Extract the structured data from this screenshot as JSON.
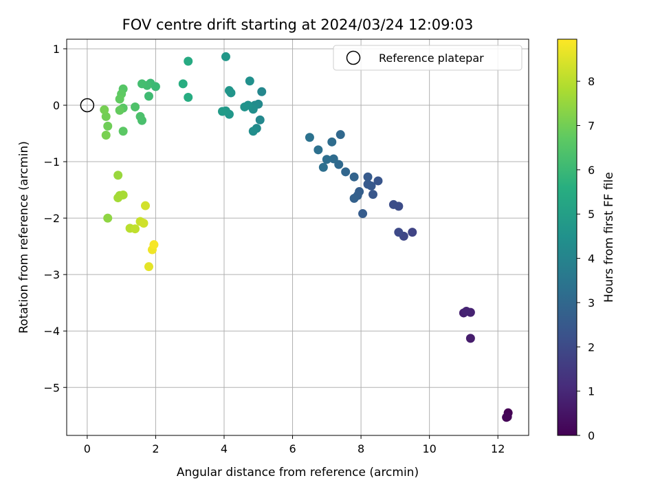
{
  "chart_data": {
    "type": "scatter",
    "title": "FOV centre drift starting at 2024/03/24 12:09:03",
    "xlabel": "Angular distance from reference (arcmin)",
    "ylabel": "Rotation from reference (arcmin)",
    "xlim": [
      -0.6,
      12.9
    ],
    "ylim": [
      -5.85,
      1.17
    ],
    "xticks": [
      0,
      2,
      4,
      6,
      8,
      10,
      12
    ],
    "xtick_labels": [
      "0",
      "2",
      "4",
      "6",
      "8",
      "10",
      "12"
    ],
    "yticks": [
      1,
      0,
      -1,
      -2,
      -3,
      -4,
      -5
    ],
    "ytick_labels": [
      "1",
      "0",
      "−1",
      "−2",
      "−3",
      "−4",
      "−5"
    ],
    "grid": true,
    "legend": {
      "placement": "top-right",
      "entries": [
        {
          "label": "Reference platepar",
          "marker": "open-circle"
        }
      ]
    },
    "reference": {
      "x": 0,
      "y": 0
    },
    "colormap": "viridis",
    "colorbar": {
      "label": "Hours from first FF file",
      "range": [
        0,
        8.95
      ],
      "ticks": [
        0,
        1,
        2,
        3,
        4,
        5,
        6,
        7,
        8
      ],
      "tick_labels": [
        "0",
        "1",
        "2",
        "3",
        "4",
        "5",
        "6",
        "7",
        "8"
      ]
    },
    "points": [
      {
        "x": 12.3,
        "y": -5.45,
        "c": 0.0
      },
      {
        "x": 12.25,
        "y": -5.53,
        "c": 0.05
      },
      {
        "x": 12.28,
        "y": -5.52,
        "c": 0.1
      },
      {
        "x": 11.2,
        "y": -4.13,
        "c": 0.7
      },
      {
        "x": 11.0,
        "y": -3.68,
        "c": 0.8
      },
      {
        "x": 11.2,
        "y": -3.67,
        "c": 0.85
      },
      {
        "x": 11.08,
        "y": -3.65,
        "c": 0.9
      },
      {
        "x": 9.5,
        "y": -2.25,
        "c": 1.8
      },
      {
        "x": 9.25,
        "y": -2.32,
        "c": 1.9
      },
      {
        "x": 9.1,
        "y": -2.25,
        "c": 2.0
      },
      {
        "x": 9.1,
        "y": -1.79,
        "c": 2.05
      },
      {
        "x": 8.95,
        "y": -1.76,
        "c": 2.1
      },
      {
        "x": 8.5,
        "y": -1.34,
        "c": 2.35
      },
      {
        "x": 8.35,
        "y": -1.58,
        "c": 2.4
      },
      {
        "x": 8.3,
        "y": -1.43,
        "c": 2.45
      },
      {
        "x": 8.2,
        "y": -1.4,
        "c": 2.5
      },
      {
        "x": 8.2,
        "y": -1.27,
        "c": 2.55
      },
      {
        "x": 8.05,
        "y": -1.92,
        "c": 2.6
      },
      {
        "x": 7.95,
        "y": -1.53,
        "c": 2.65
      },
      {
        "x": 7.9,
        "y": -1.6,
        "c": 2.7
      },
      {
        "x": 7.8,
        "y": -1.65,
        "c": 2.75
      },
      {
        "x": 7.8,
        "y": -1.27,
        "c": 2.85
      },
      {
        "x": 7.55,
        "y": -1.18,
        "c": 2.95
      },
      {
        "x": 7.4,
        "y": -0.52,
        "c": 3.0
      },
      {
        "x": 7.35,
        "y": -1.05,
        "c": 3.05
      },
      {
        "x": 7.2,
        "y": -0.95,
        "c": 3.1
      },
      {
        "x": 7.15,
        "y": -0.65,
        "c": 3.15
      },
      {
        "x": 7.0,
        "y": -0.96,
        "c": 3.2
      },
      {
        "x": 6.9,
        "y": -1.1,
        "c": 3.25
      },
      {
        "x": 6.75,
        "y": -0.79,
        "c": 3.3
      },
      {
        "x": 6.5,
        "y": -0.57,
        "c": 3.35
      },
      {
        "x": 5.1,
        "y": 0.24,
        "c": 4.1
      },
      {
        "x": 5.05,
        "y": -0.26,
        "c": 4.15
      },
      {
        "x": 5.0,
        "y": 0.02,
        "c": 4.2
      },
      {
        "x": 4.95,
        "y": -0.41,
        "c": 4.25
      },
      {
        "x": 4.9,
        "y": 0.0,
        "c": 4.3
      },
      {
        "x": 4.85,
        "y": -0.46,
        "c": 4.35
      },
      {
        "x": 4.85,
        "y": -0.07,
        "c": 4.4
      },
      {
        "x": 4.75,
        "y": 0.43,
        "c": 4.45
      },
      {
        "x": 4.7,
        "y": 0.0,
        "c": 4.5
      },
      {
        "x": 4.6,
        "y": -0.03,
        "c": 4.55
      },
      {
        "x": 4.2,
        "y": 0.22,
        "c": 4.6
      },
      {
        "x": 4.15,
        "y": 0.26,
        "c": 4.65
      },
      {
        "x": 4.15,
        "y": -0.16,
        "c": 4.7
      },
      {
        "x": 4.05,
        "y": 0.86,
        "c": 4.75
      },
      {
        "x": 4.05,
        "y": -0.1,
        "c": 4.8
      },
      {
        "x": 3.95,
        "y": -0.11,
        "c": 4.85
      },
      {
        "x": 2.95,
        "y": 0.78,
        "c": 5.45
      },
      {
        "x": 2.95,
        "y": 0.14,
        "c": 5.5
      },
      {
        "x": 2.8,
        "y": 0.38,
        "c": 5.55
      },
      {
        "x": 2.0,
        "y": 0.33,
        "c": 6.0
      },
      {
        "x": 1.85,
        "y": 0.39,
        "c": 6.05
      },
      {
        "x": 1.8,
        "y": 0.16,
        "c": 6.1
      },
      {
        "x": 1.75,
        "y": 0.35,
        "c": 6.15
      },
      {
        "x": 1.6,
        "y": 0.38,
        "c": 6.2
      },
      {
        "x": 1.6,
        "y": -0.27,
        "c": 6.3
      },
      {
        "x": 1.55,
        "y": -0.2,
        "c": 6.35
      },
      {
        "x": 1.4,
        "y": -0.03,
        "c": 6.4
      },
      {
        "x": 1.05,
        "y": 0.29,
        "c": 6.55
      },
      {
        "x": 1.05,
        "y": -0.05,
        "c": 6.6
      },
      {
        "x": 1.05,
        "y": -0.46,
        "c": 6.65
      },
      {
        "x": 1.0,
        "y": 0.2,
        "c": 6.7
      },
      {
        "x": 0.95,
        "y": 0.11,
        "c": 6.75
      },
      {
        "x": 0.95,
        "y": -0.09,
        "c": 6.8
      },
      {
        "x": 0.6,
        "y": -0.37,
        "c": 6.95
      },
      {
        "x": 0.55,
        "y": -0.2,
        "c": 7.0
      },
      {
        "x": 0.5,
        "y": -0.08,
        "c": 7.05
      },
      {
        "x": 0.55,
        "y": -0.53,
        "c": 7.1
      },
      {
        "x": 0.6,
        "y": -2.0,
        "c": 7.4
      },
      {
        "x": 0.9,
        "y": -1.24,
        "c": 7.55
      },
      {
        "x": 0.95,
        "y": -1.6,
        "c": 7.65
      },
      {
        "x": 0.9,
        "y": -1.64,
        "c": 7.7
      },
      {
        "x": 1.05,
        "y": -1.59,
        "c": 7.75
      },
      {
        "x": 1.25,
        "y": -2.18,
        "c": 8.0
      },
      {
        "x": 1.4,
        "y": -2.19,
        "c": 8.1
      },
      {
        "x": 1.55,
        "y": -2.06,
        "c": 8.2
      },
      {
        "x": 1.65,
        "y": -2.09,
        "c": 8.3
      },
      {
        "x": 1.7,
        "y": -1.78,
        "c": 8.35
      },
      {
        "x": 1.8,
        "y": -2.86,
        "c": 8.6
      },
      {
        "x": 1.9,
        "y": -2.56,
        "c": 8.75
      },
      {
        "x": 1.95,
        "y": -2.47,
        "c": 8.85
      }
    ]
  }
}
